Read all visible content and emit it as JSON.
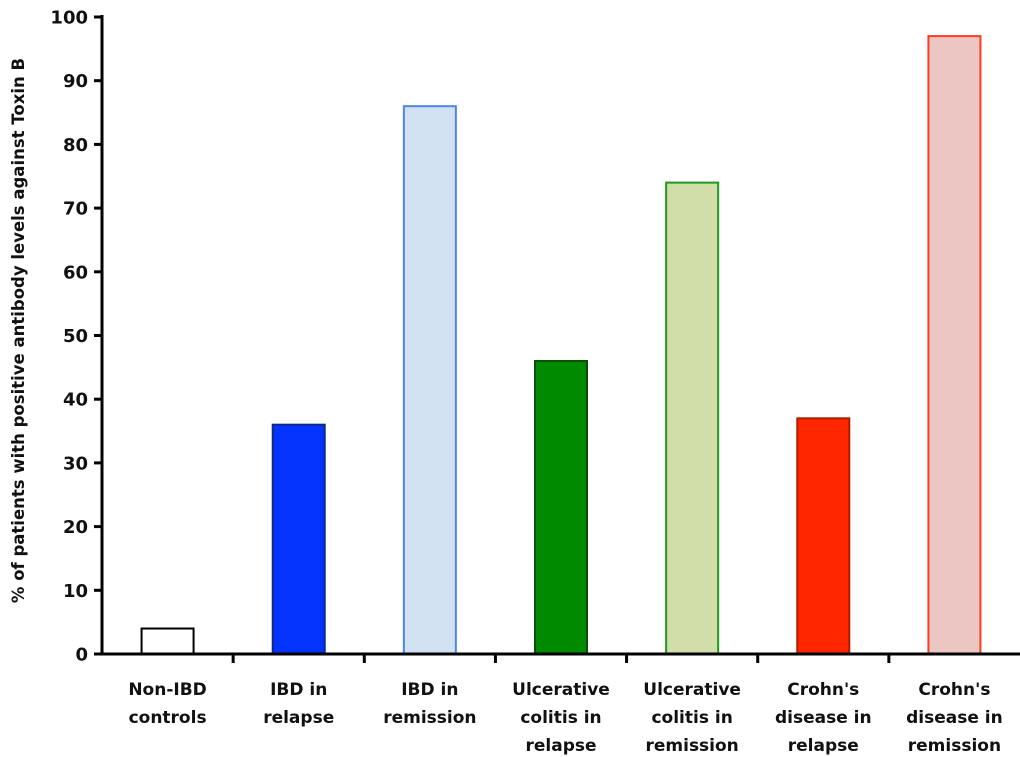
{
  "chart_data": {
    "type": "bar",
    "title": "",
    "xlabel": "",
    "ylabel": "% of patients with positive antibody levels against Toxin B",
    "ylim": [
      0,
      100
    ],
    "yticks": [
      0,
      10,
      20,
      30,
      40,
      50,
      60,
      70,
      80,
      90,
      100
    ],
    "grid": false,
    "categories": [
      [
        "Non-IBD",
        "controls"
      ],
      [
        "IBD in",
        "relapse"
      ],
      [
        "IBD in",
        "remission"
      ],
      [
        "Ulcerative",
        "colitis in",
        "relapse"
      ],
      [
        "Ulcerative",
        "colitis in",
        "remission"
      ],
      [
        "Crohn's",
        "disease in",
        "relapse"
      ],
      [
        "Crohn's",
        "disease in",
        "remission"
      ]
    ],
    "values": [
      4,
      36,
      86,
      46,
      74,
      37,
      97
    ],
    "colors": [
      {
        "fill": "#ffffff",
        "stroke": "#000000"
      },
      {
        "fill": "#0433ff",
        "stroke": "#0a2a8a"
      },
      {
        "fill": "#d2e1f2",
        "stroke": "#4a86e8"
      },
      {
        "fill": "#008a00",
        "stroke": "#0b4f0b"
      },
      {
        "fill": "#d2deaa",
        "stroke": "#1f9a1f"
      },
      {
        "fill": "#ff2600",
        "stroke": "#b01a00"
      },
      {
        "fill": "#ebc6c3",
        "stroke": "#ff3b1f"
      }
    ]
  }
}
